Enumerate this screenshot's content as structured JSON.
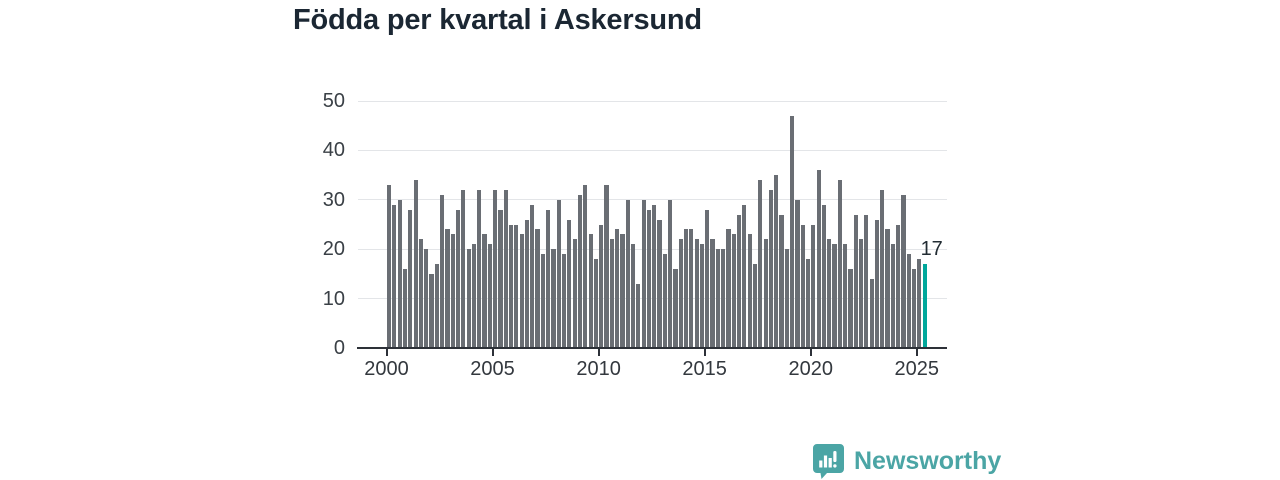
{
  "title": "Födda per kvartal i Askersund",
  "chart_data": {
    "type": "bar",
    "title": "Födda per kvartal i Askersund",
    "xlabel": "",
    "ylabel": "",
    "ylim": [
      0,
      50
    ],
    "y_ticks": [
      "0",
      "10",
      "20",
      "30",
      "40",
      "50"
    ],
    "x_ticks": [
      "2000",
      "2005",
      "2010",
      "2015",
      "2020",
      "2025"
    ],
    "grid": "horizontal",
    "start_quarter": "2000Q1",
    "end_quarter": "2025Q2",
    "series_name": "Födda",
    "values": [
      33,
      29,
      30,
      16,
      28,
      34,
      22,
      20,
      15,
      17,
      31,
      24,
      23,
      28,
      32,
      20,
      21,
      32,
      23,
      21,
      32,
      28,
      32,
      25,
      25,
      23,
      26,
      29,
      24,
      19,
      28,
      20,
      30,
      19,
      26,
      22,
      31,
      33,
      23,
      18,
      25,
      33,
      22,
      24,
      23,
      30,
      21,
      13,
      30,
      28,
      29,
      26,
      19,
      30,
      16,
      22,
      24,
      24,
      22,
      21,
      28,
      22,
      20,
      20,
      24,
      23,
      27,
      29,
      23,
      17,
      34,
      22,
      32,
      35,
      27,
      20,
      47,
      30,
      25,
      18,
      25,
      36,
      29,
      22,
      21,
      34,
      21,
      16,
      27,
      22,
      27,
      14,
      26,
      32,
      24,
      21,
      25,
      31,
      19,
      16,
      18,
      17
    ],
    "highlight_last": true,
    "highlight_label": "17",
    "bar_color": "#6a6e74",
    "highlight_color": "#00a79b"
  },
  "branding": {
    "logo_text": "Newsworthy",
    "logo_color": "#4ba5a5",
    "logo_icon": "speech-bubble-bar-chart-icon"
  },
  "colors": {
    "title": "#1b2733",
    "axis": "#2d3138",
    "tick_label": "#33383e",
    "gridline": "#e3e5e8"
  }
}
